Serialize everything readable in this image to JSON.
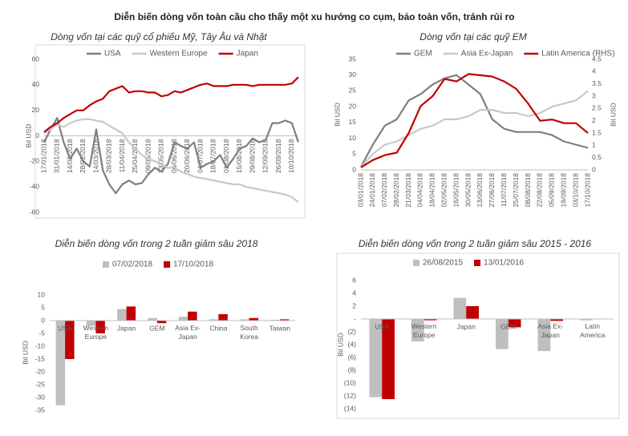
{
  "title": "Diễn biến dòng vốn toàn cầu cho thấy một xu hướng co cụm, bảo toàn vốn, tránh rủi ro",
  "chart_data": [
    {
      "type": "line",
      "title": "Dòng vốn tại các quỹ cổ phiếu Mỹ, Tây Âu và Nhật",
      "ylabel": "Bil USD",
      "categories": [
        "17/01/2018",
        null,
        "31/01/2018",
        null,
        "14/02/2018",
        null,
        "28/02/2018",
        null,
        "14/03/2018",
        null,
        "28/03/2018",
        null,
        "11/04/2018",
        null,
        "25/04/2018",
        null,
        "09/05/2018",
        null,
        "23/05/2018",
        null,
        "06/06/2018",
        null,
        "20/06/2018",
        null,
        "04/07/2018",
        null,
        "18/07/2018",
        null,
        "01/08/2018",
        null,
        "15/08/2018",
        null,
        "29/08/2018",
        null,
        "12/09/2018",
        null,
        "26/09/2018",
        null,
        "10/10/2018",
        null
      ],
      "series": [
        {
          "name": "USA",
          "color": "#7f7f7f",
          "values": [
            -5,
            5,
            14,
            -5,
            -18,
            -10,
            -20,
            -24,
            5,
            -27,
            -38,
            -45,
            -38,
            -35,
            -38,
            -37,
            -30,
            -25,
            -28,
            -22,
            -5,
            -8,
            -10,
            -5,
            -25,
            -22,
            -20,
            -15,
            -25,
            -18,
            -10,
            -8,
            -2,
            -5,
            -3,
            10,
            10,
            12,
            10,
            -5
          ]
        },
        {
          "name": "Western Europe",
          "color": "#c8c8c8",
          "values": [
            2,
            5,
            9,
            7,
            10,
            12,
            13,
            13,
            12,
            11,
            8,
            5,
            2,
            -5,
            -10,
            -15,
            -18,
            -20,
            -22,
            -25,
            -25,
            -28,
            -30,
            -32,
            -33,
            -34,
            -35,
            -36,
            -37,
            -38,
            -38,
            -40,
            -41,
            -42,
            -43,
            -44,
            -45,
            -46,
            -48,
            -52
          ]
        },
        {
          "name": "Japan",
          "color": "#c00000",
          "values": [
            3,
            7,
            10,
            14,
            17,
            20,
            20,
            24,
            27,
            29,
            35,
            37,
            39,
            34,
            35,
            35,
            34,
            34,
            31,
            32,
            35,
            34,
            36,
            38,
            40,
            41,
            39,
            39,
            39,
            40,
            40,
            40,
            39,
            40,
            40,
            40,
            40,
            40,
            41,
            46
          ]
        }
      ],
      "ylim": [
        -60,
        60
      ],
      "yticks": [
        -60,
        -40,
        -20,
        0,
        20,
        40,
        60
      ]
    },
    {
      "type": "line",
      "title": "Dòng vốn tại các quỹ EM",
      "ylabel": "Bil USD",
      "y2label": "Bil USD",
      "categories": [
        "03/01/2018",
        "24/01/2018",
        "07/02/2018",
        "28/02/2018",
        "21/03/2018",
        "04/04/2018",
        "18/04/2018",
        "02/05/2018",
        "16/05/2018",
        "30/05/2018",
        "13/06/2018",
        "27/06/2018",
        "11/07/2018",
        "25/07/2018",
        "08/08/2018",
        "22/08/2018",
        "05/09/2018",
        "19/09/2018",
        "03/10/2018",
        "17/10/2018"
      ],
      "series": [
        {
          "name": "GEM",
          "color": "#7f7f7f",
          "values": [
            1,
            8,
            14,
            16,
            22,
            24,
            27,
            29,
            30,
            27,
            24,
            16,
            13,
            12,
            12,
            12,
            11,
            9,
            8,
            7
          ]
        },
        {
          "name": "Asia Ex-Japan",
          "color": "#c8c8c8",
          "values": [
            1,
            5,
            8,
            9,
            11,
            13,
            14,
            16,
            16,
            17,
            19,
            19,
            18,
            18,
            17,
            18,
            20,
            21,
            22,
            25
          ]
        },
        {
          "name": "Latin America (RHS)",
          "color": "#c00000",
          "axis": "y2",
          "values": [
            0.1,
            0.4,
            0.6,
            0.7,
            1.5,
            2.6,
            3.0,
            3.7,
            3.6,
            3.9,
            3.85,
            3.8,
            3.6,
            3.3,
            2.7,
            2.0,
            2.05,
            1.9,
            1.9,
            1.5
          ]
        }
      ],
      "ylim": [
        0,
        35
      ],
      "yticks": [
        0,
        5,
        10,
        15,
        20,
        25,
        30,
        35
      ],
      "y2lim": [
        0,
        4.5
      ],
      "y2ticks": [
        0,
        0.5,
        1,
        1.5,
        2,
        2.5,
        3,
        3.5,
        4,
        4.5
      ]
    },
    {
      "type": "bar",
      "title": "Diễn biến dòng vốn trong 2 tuần giảm sâu 2018",
      "ylabel": "Bil USD",
      "categories": [
        "USA",
        "Western Europe",
        "Japan",
        "GEM",
        "Asia Ex-Japan",
        "China",
        "South Korea",
        "Taiwan"
      ],
      "series": [
        {
          "name": "07/02/2018",
          "color": "#bfbfbf",
          "values": [
            -33,
            -2,
            4.5,
            1,
            1.5,
            0.5,
            0.5,
            0.3
          ]
        },
        {
          "name": "17/10/2018",
          "color": "#c00000",
          "values": [
            -15,
            -5,
            5.5,
            -1,
            3.5,
            2.5,
            1,
            0.5
          ]
        }
      ],
      "ylim": [
        -35,
        10
      ],
      "yticks": [
        -35,
        -30,
        -25,
        -20,
        -15,
        -10,
        -5,
        0,
        5,
        10
      ]
    },
    {
      "type": "bar",
      "title": "Diễn biến dòng vốn trong 2 tuần giảm sâu 2015 - 2016",
      "ylabel": "Bil USD",
      "categories": [
        "USA",
        "Western Europe",
        "Japan",
        "GEM",
        "Asia Ex-Japan",
        "Latin America"
      ],
      "series": [
        {
          "name": "26/08/2015",
          "color": "#bfbfbf",
          "values": [
            -12.2,
            -3.5,
            3.3,
            -4.7,
            -5,
            -0.2
          ]
        },
        {
          "name": "13/01/2016",
          "color": "#c00000",
          "values": [
            -12.5,
            -0.2,
            2,
            -1.3,
            -0.3,
            0
          ]
        }
      ],
      "ylim": [
        -14,
        6
      ],
      "yticks": [
        {
          "value": -14,
          "label": "(14)"
        },
        {
          "value": -12,
          "label": "(12)"
        },
        {
          "value": -10,
          "label": "(10)"
        },
        {
          "value": -8,
          "label": "(8)"
        },
        {
          "value": -6,
          "label": "(6)"
        },
        {
          "value": -4,
          "label": "(4)"
        },
        {
          "value": -2,
          "label": "(2)"
        },
        {
          "value": 0,
          "label": "-"
        },
        2,
        4,
        6
      ]
    }
  ]
}
